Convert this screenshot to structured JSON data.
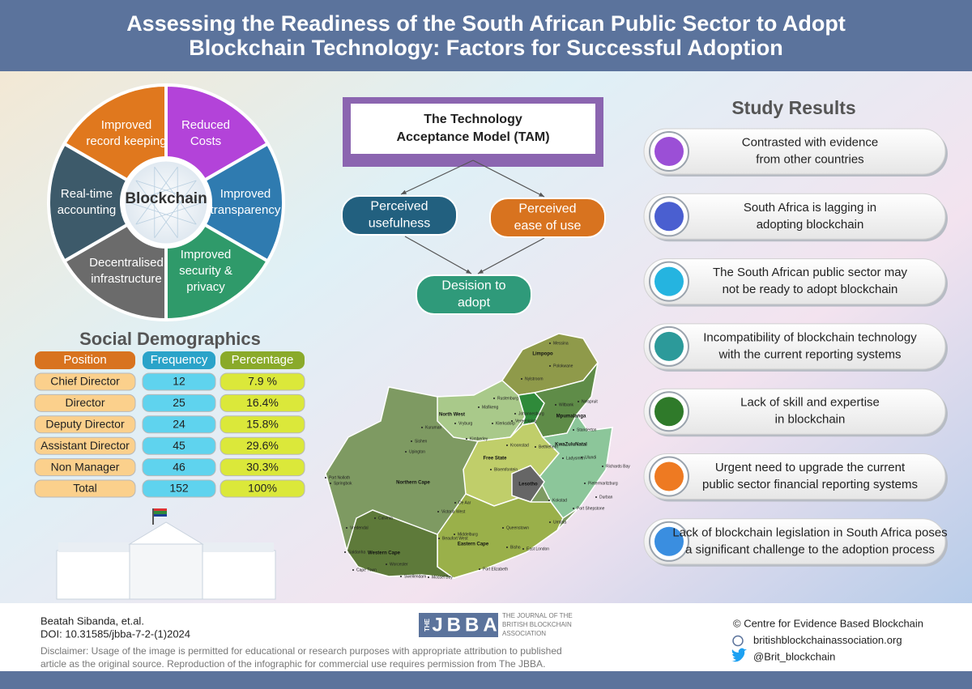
{
  "header": {
    "title_lines": [
      "Assessing the Readiness of the South African Public Sector to Adopt",
      "Blockchain Technology: Factors for Successful Adoption"
    ]
  },
  "wheel": {
    "center": "Blockchain",
    "segments": [
      {
        "lines": [
          "Reduced",
          "Costs"
        ]
      },
      {
        "lines": [
          "Improved",
          "transparency"
        ]
      },
      {
        "lines": [
          "Improved",
          "security &",
          "privacy"
        ]
      },
      {
        "lines": [
          "Decentralised",
          "infrastructure"
        ]
      },
      {
        "lines": [
          "Real-time",
          "accounting"
        ]
      },
      {
        "lines": [
          "Improved",
          "record keeping"
        ]
      }
    ]
  },
  "tam": {
    "title_lines": [
      "The Technology",
      "Acceptance Model (TAM)"
    ],
    "usefulness": [
      "Perceived",
      "usefulness"
    ],
    "ease": [
      "Perceived",
      "ease of use"
    ],
    "decision": [
      "Desision to",
      "adopt"
    ]
  },
  "demographics": {
    "title": "Social Demographics",
    "columns": [
      "Position",
      "Frequency",
      "Percentage"
    ],
    "rows": [
      [
        "Chief Director",
        12,
        "7.9 %"
      ],
      [
        "Director",
        25,
        "16.4%"
      ],
      [
        "Deputy Director",
        24,
        "15.8%"
      ],
      [
        "Assistant Director",
        45,
        "29.6%"
      ],
      [
        "Non Manager",
        46,
        "30.3%"
      ],
      [
        "Total",
        152,
        "100%"
      ]
    ]
  },
  "study_results": {
    "title": "Study Results",
    "items": [
      [
        "Contrasted with evidence",
        "from other countries"
      ],
      [
        "South Africa is lagging in",
        "adopting blockchain"
      ],
      [
        "The South African public sector may",
        "not be ready to adopt blockchain"
      ],
      [
        "Incompatibility of blockchain technology",
        "with the current reporting systems"
      ],
      [
        "Lack of skill and expertise",
        "in blockchain"
      ],
      [
        "Urgent need to upgrade the current",
        "public sector financial reporting systems"
      ],
      [
        "Lack of blockchain legislation in South Africa poses",
        "a significant challenge to the adoption process"
      ]
    ]
  },
  "map": {
    "provinces": [
      "Limpopo",
      "North West",
      "Mpumalanga",
      "Free State",
      "KwaZuluNatal",
      "Lesotho",
      "Northern Cape",
      "Eastern Cape",
      "Western Cape"
    ],
    "cities": [
      "Messina",
      "Polokwane",
      "Nylstroom",
      "Rustenburg",
      "Mafikeng",
      "Johannesburg",
      "Vereeniging",
      "Witbank",
      "Nelspruit",
      "Standerton",
      "Klerksdorp",
      "Vryburg",
      "Kimberley",
      "Bloemfontein",
      "Kroonstad",
      "Bethlehem",
      "Ulundi",
      "Richards Bay",
      "Ladysmith",
      "Pietermaritzburg",
      "Durban",
      "Port Shepstone",
      "Kokstad",
      "Umtata",
      "Queenstown",
      "East London",
      "Bisho",
      "Port Elizabeth",
      "Middelburg",
      "De Aar",
      "Upington",
      "Springbok",
      "Port Nolloth",
      "Calvinia",
      "Victoria West",
      "Beaufort West",
      "Vredendal",
      "Saldanha",
      "Cape Town",
      "Worcester",
      "Swellendam",
      "Mossel Bay",
      "Kuruman",
      "Sishen"
    ]
  },
  "footer": {
    "authors": "Beatah Sibanda, et.al.",
    "doi": "DOI: 10.31585/jbba-7-2-(1)2024",
    "disclaimer_lines": [
      "Disclaimer: Usage of the image is permitted for educational or research purposes with appropriate attribution to published",
      "article as the original source. Reproduction of the infographic for commercial use requires permission from The JBBA."
    ],
    "logo_the": "THE",
    "logo_name": "JBBA",
    "logo_lines": [
      "THE JOURNAL OF THE",
      "BRITISH BLOCKCHAIN",
      "ASSOCIATION"
    ],
    "contacts": [
      "© Centre for Evidence Based Blockchain",
      "britishblockchainassociation.org",
      "@Brit_blockchain"
    ]
  }
}
